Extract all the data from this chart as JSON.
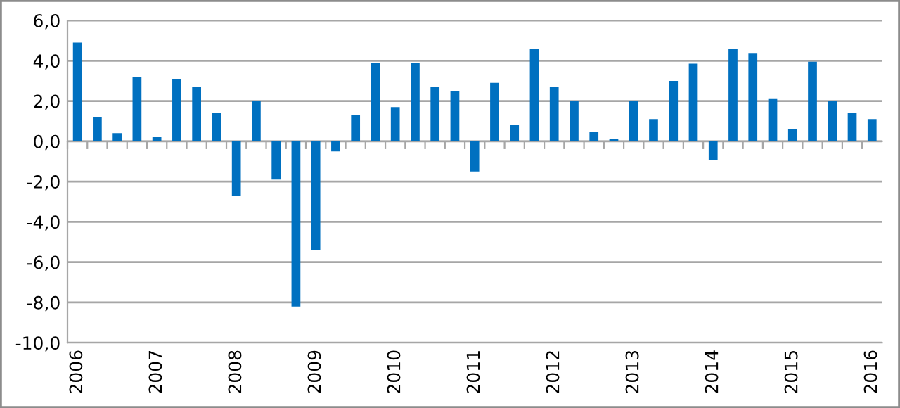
{
  "chart_data": {
    "type": "bar",
    "categories": [
      "2006",
      null,
      null,
      null,
      "2007",
      null,
      null,
      null,
      "2008",
      null,
      null,
      null,
      "2009",
      null,
      null,
      null,
      "2010",
      null,
      null,
      null,
      "2011",
      null,
      null,
      null,
      "2012",
      null,
      null,
      null,
      "2013",
      null,
      null,
      null,
      "2014",
      null,
      null,
      null,
      "2015",
      null,
      null,
      null,
      "2016"
    ],
    "values": [
      4.9,
      1.2,
      0.4,
      3.2,
      0.2,
      3.1,
      2.7,
      1.4,
      -2.7,
      2.0,
      -1.9,
      -8.2,
      -5.4,
      -0.5,
      1.3,
      3.9,
      1.7,
      3.9,
      2.7,
      2.5,
      -1.5,
      2.9,
      0.8,
      4.6,
      2.7,
      2.0,
      0.45,
      0.1,
      2.0,
      1.1,
      3.0,
      3.85,
      -0.95,
      4.6,
      4.35,
      2.1,
      0.6,
      3.95,
      2.0,
      1.4,
      1.1
    ],
    "color": "#0070c0",
    "ylim": [
      -10,
      6
    ],
    "yticks": [
      {
        "value": -10,
        "label": "-10,0"
      },
      {
        "value": -8,
        "label": "-8,0"
      },
      {
        "value": -6,
        "label": "-6,0"
      },
      {
        "value": -4,
        "label": "-4,0"
      },
      {
        "value": -2,
        "label": "-2,0"
      },
      {
        "value": 0,
        "label": "0,0"
      },
      {
        "value": 2,
        "label": "2,0"
      },
      {
        "value": 4,
        "label": "4,0"
      },
      {
        "value": 6,
        "label": "6,0"
      }
    ],
    "grid": "y"
  }
}
